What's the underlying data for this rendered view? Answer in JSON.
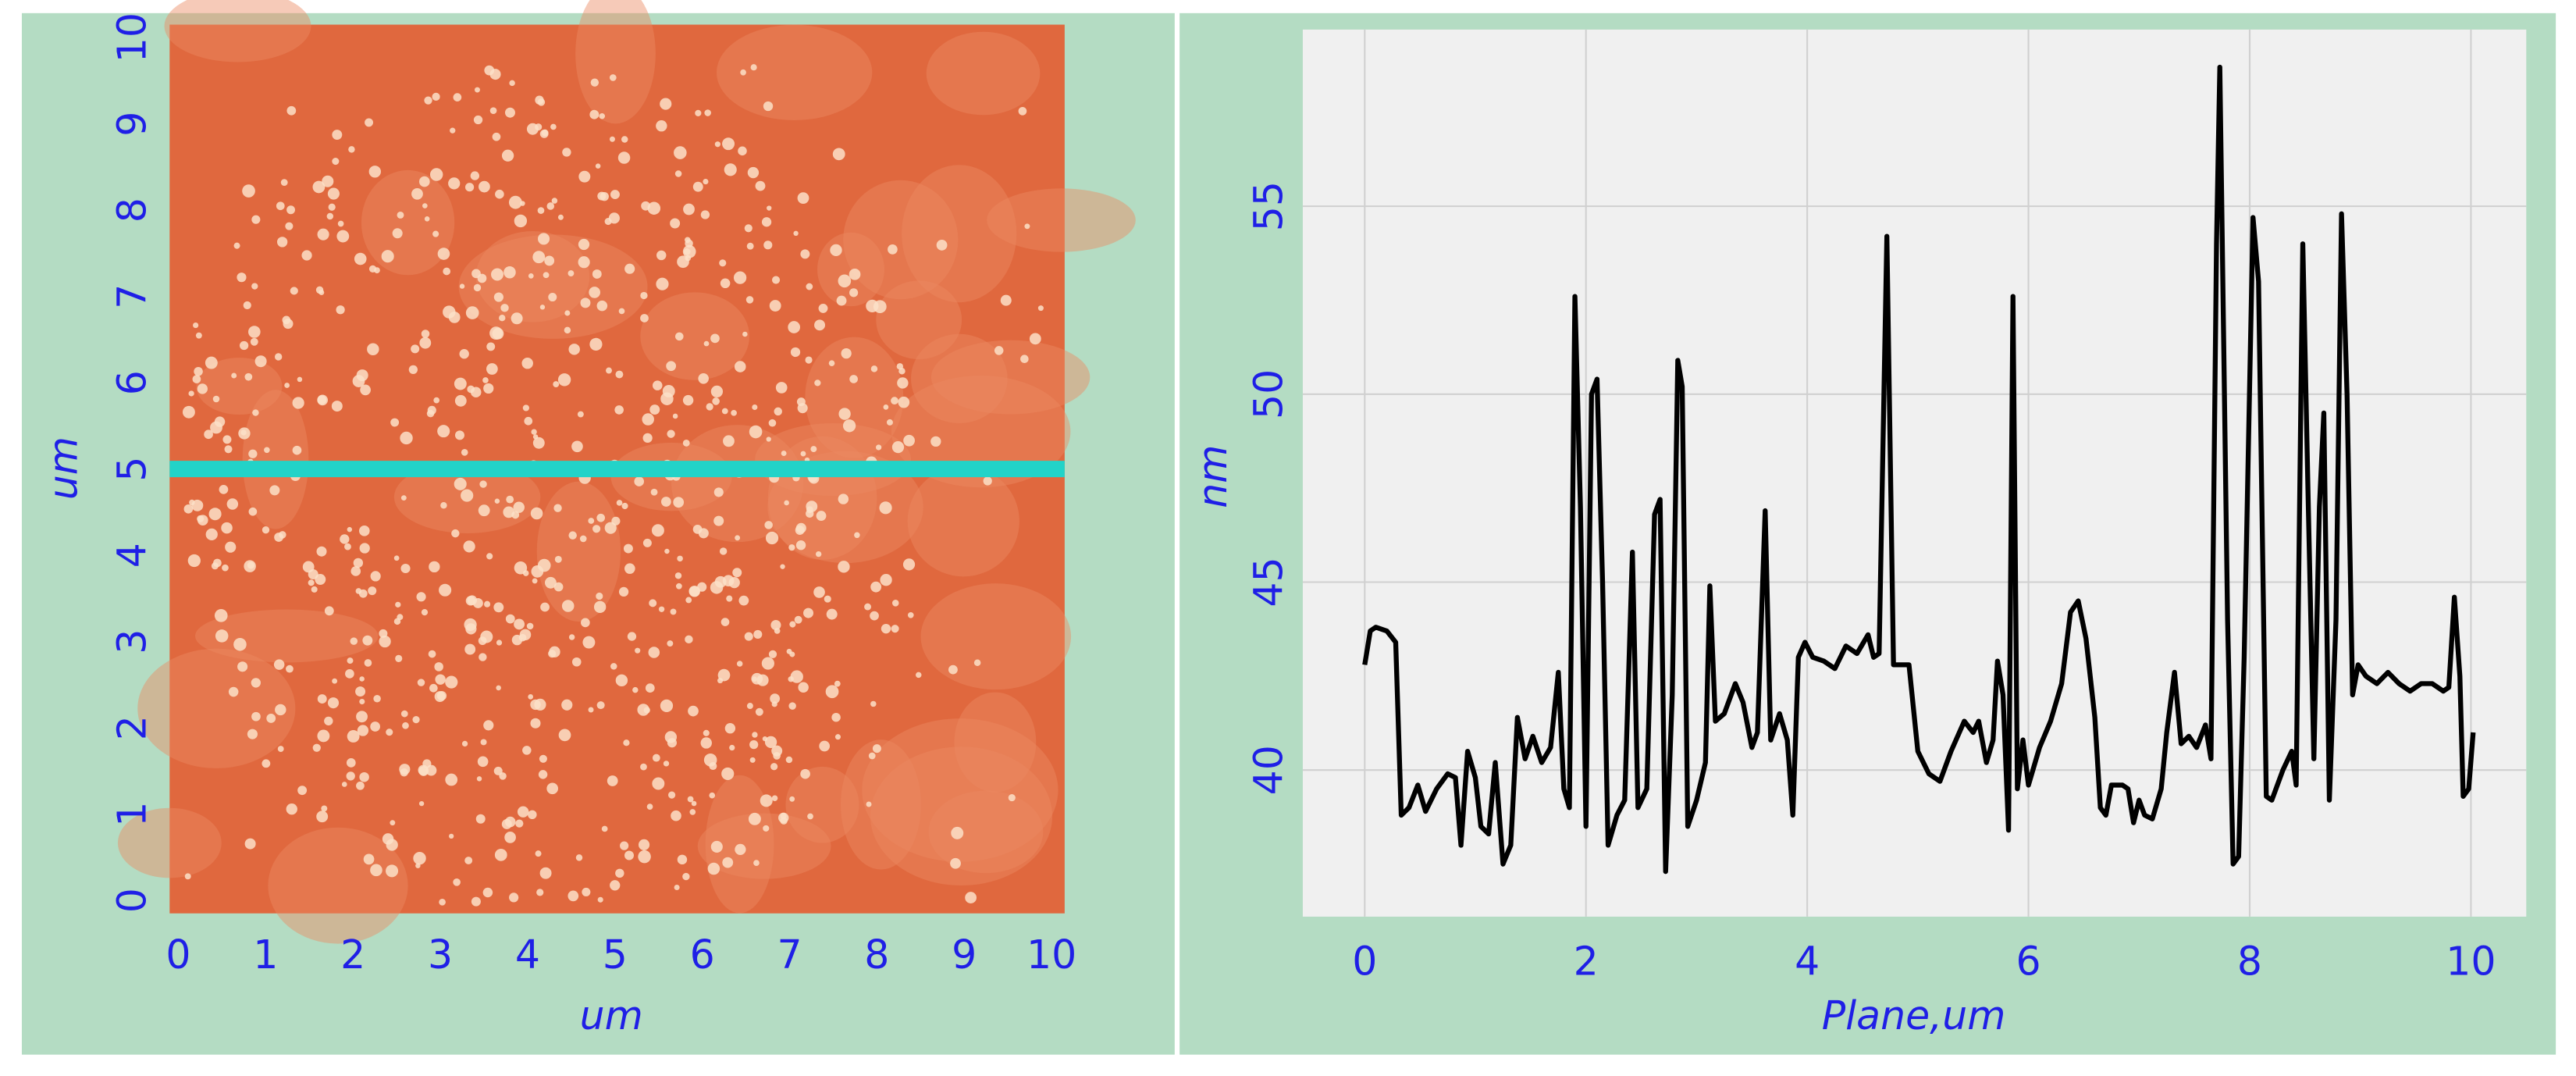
{
  "chart_data": [
    {
      "type": "image",
      "x_label": "um",
      "y_label": "um",
      "xlim": [
        -0.1,
        10.15
      ],
      "ylim": [
        -0.15,
        10.15
      ],
      "xticks": [
        0,
        1,
        2,
        3,
        4,
        5,
        6,
        7,
        8,
        9,
        10
      ],
      "yticks": [
        0,
        1,
        2,
        3,
        4,
        5,
        6,
        7,
        8,
        9,
        10
      ],
      "color": "#e0683e",
      "line_y": 5,
      "line_color": "#22d3c8"
    },
    {
      "type": "line",
      "x_label": "Plane,um",
      "y_label": "nm",
      "xlim": [
        -0.56,
        10.5
      ],
      "ylim": [
        36.1,
        59.7
      ],
      "xticks": [
        0,
        2,
        4,
        6,
        8,
        10
      ],
      "yticks": [
        40,
        45,
        50,
        55
      ],
      "grid": true,
      "color": "#000000",
      "x": [
        0.0,
        0.05,
        0.1,
        0.2,
        0.28,
        0.33,
        0.4,
        0.48,
        0.55,
        0.65,
        0.75,
        0.82,
        0.87,
        0.93,
        1.0,
        1.05,
        1.12,
        1.18,
        1.25,
        1.32,
        1.38,
        1.45,
        1.52,
        1.6,
        1.68,
        1.75,
        1.8,
        1.85,
        1.9,
        1.95,
        2.0,
        2.05,
        2.1,
        2.15,
        2.2,
        2.28,
        2.35,
        2.42,
        2.47,
        2.55,
        2.62,
        2.67,
        2.72,
        2.78,
        2.83,
        2.87,
        2.92,
        3.0,
        3.08,
        3.12,
        3.17,
        3.25,
        3.35,
        3.42,
        3.5,
        3.55,
        3.62,
        3.67,
        3.75,
        3.82,
        3.87,
        3.92,
        3.98,
        4.05,
        4.15,
        4.25,
        4.35,
        4.45,
        4.55,
        4.6,
        4.65,
        4.72,
        4.78,
        4.85,
        4.92,
        5.0,
        5.1,
        5.2,
        5.3,
        5.42,
        5.5,
        5.55,
        5.62,
        5.68,
        5.72,
        5.77,
        5.82,
        5.86,
        5.9,
        5.95,
        6.0,
        6.1,
        6.2,
        6.3,
        6.38,
        6.45,
        6.52,
        6.6,
        6.65,
        6.7,
        6.75,
        6.85,
        6.9,
        6.95,
        7.0,
        7.05,
        7.12,
        7.2,
        7.25,
        7.32,
        7.38,
        7.45,
        7.52,
        7.6,
        7.65,
        7.7,
        7.73,
        7.8,
        7.85,
        7.9,
        7.95,
        8.03,
        8.08,
        8.15,
        8.2,
        8.3,
        8.38,
        8.42,
        8.48,
        8.53,
        8.58,
        8.63,
        8.67,
        8.72,
        8.78,
        8.83,
        8.88,
        8.93,
        8.98,
        9.05,
        9.15,
        9.25,
        9.35,
        9.45,
        9.55,
        9.65,
        9.75,
        9.8,
        9.85,
        9.9,
        9.93,
        9.98,
        10.02
      ],
      "values": [
        42.8,
        43.7,
        43.8,
        43.7,
        43.4,
        38.8,
        39.0,
        39.6,
        38.9,
        39.5,
        39.9,
        39.8,
        38.0,
        40.5,
        39.8,
        38.5,
        38.3,
        40.2,
        37.5,
        38.0,
        41.4,
        40.3,
        40.9,
        40.2,
        40.6,
        42.6,
        39.5,
        39.0,
        52.6,
        47.0,
        38.5,
        50.0,
        50.4,
        45.0,
        38.0,
        38.8,
        39.2,
        45.8,
        39.0,
        39.5,
        46.8,
        47.2,
        37.3,
        42.0,
        50.9,
        50.2,
        38.5,
        39.2,
        40.2,
        44.9,
        41.3,
        41.5,
        42.3,
        41.8,
        40.6,
        41.0,
        46.9,
        40.8,
        41.5,
        40.8,
        38.8,
        43.0,
        43.4,
        43.0,
        42.9,
        42.7,
        43.3,
        43.1,
        43.6,
        43.0,
        43.1,
        54.2,
        42.8,
        42.8,
        42.8,
        40.5,
        39.9,
        39.7,
        40.5,
        41.3,
        41.0,
        41.3,
        40.2,
        40.8,
        42.9,
        42.0,
        38.4,
        52.6,
        39.5,
        40.8,
        39.6,
        40.6,
        41.3,
        42.3,
        44.2,
        44.5,
        43.5,
        41.4,
        39.0,
        38.8,
        39.6,
        39.6,
        39.5,
        38.6,
        39.2,
        38.8,
        38.7,
        39.5,
        41.0,
        42.6,
        40.7,
        40.9,
        40.6,
        41.2,
        40.3,
        54.0,
        58.7,
        44.0,
        37.5,
        37.7,
        43.0,
        54.7,
        53.0,
        39.3,
        39.2,
        40.0,
        40.5,
        39.6,
        54.0,
        47.0,
        40.3,
        47.0,
        49.5,
        39.2,
        44.0,
        54.8,
        50.0,
        42.0,
        42.8,
        42.5,
        42.3,
        42.6,
        42.3,
        42.1,
        42.3,
        42.3,
        42.1,
        42.2,
        44.6,
        42.5,
        39.3,
        39.5,
        41.0
      ]
    }
  ]
}
